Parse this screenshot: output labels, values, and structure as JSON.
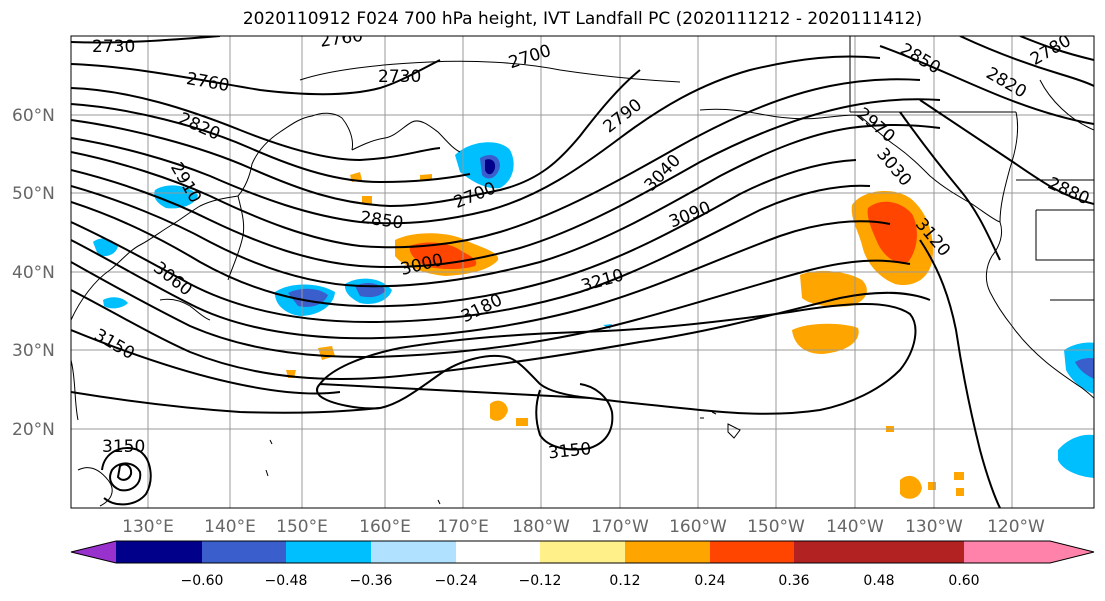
{
  "title": "2020110912 F024 700 hPa height, IVT Landfall PC (2020111212 - 2020111412)",
  "lat_labels": [
    "60°N",
    "50°N",
    "40°N",
    "30°N",
    "20°N"
  ],
  "lon_labels": [
    "130°E",
    "140°E",
    "150°E",
    "160°E",
    "170°E",
    "180°W",
    "170°W",
    "160°W",
    "150°W",
    "140°W",
    "130°W",
    "120°W"
  ],
  "colorbar": {
    "ticks": [
      "−0.60",
      "−0.48",
      "−0.36",
      "−0.24",
      "−0.12",
      "0.12",
      "0.24",
      "0.36",
      "0.48",
      "0.60"
    ],
    "colors": [
      "#9932cc",
      "#00008b",
      "#3a5fcd",
      "#00bfff",
      "#b0e2ff",
      "#ffffff",
      "#fff08a",
      "#ffa500",
      "#ff4500",
      "#b22222",
      "#ff82ab"
    ]
  },
  "contour_labels": [
    {
      "text": "2730"
    },
    {
      "text": "2760"
    },
    {
      "text": "2700"
    },
    {
      "text": "2730"
    },
    {
      "text": "2760"
    },
    {
      "text": "2820"
    },
    {
      "text": "2790"
    },
    {
      "text": "2850"
    },
    {
      "text": "2780"
    },
    {
      "text": "2820"
    },
    {
      "text": "2910"
    },
    {
      "text": "2970"
    },
    {
      "text": "2700"
    },
    {
      "text": "3040"
    },
    {
      "text": "2850"
    },
    {
      "text": "3030"
    },
    {
      "text": "3090"
    },
    {
      "text": "2880"
    },
    {
      "text": "3000"
    },
    {
      "text": "3120"
    },
    {
      "text": "3060"
    },
    {
      "text": "3210"
    },
    {
      "text": "3180"
    },
    {
      "text": "3150"
    },
    {
      "text": "3150"
    },
    {
      "text": "3150"
    }
  ]
}
